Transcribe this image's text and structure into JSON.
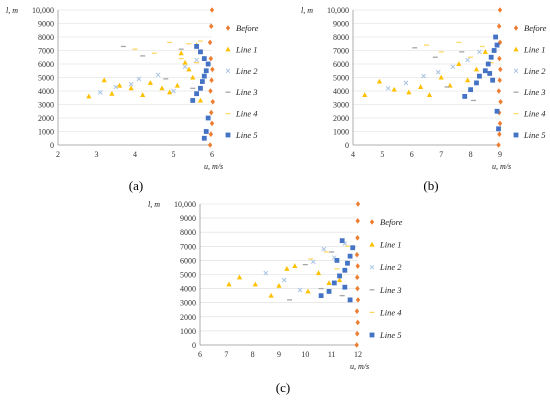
{
  "figure": {
    "panel_labels": [
      "(a)",
      "(b)",
      "(c)"
    ]
  },
  "colors": {
    "Before": "#ED7D31",
    "Line 1": "#FFC000",
    "Line 2": "#A9C4E2",
    "Line 3": "#A6A6A6",
    "Line 4": "#FFD966",
    "Line 5": "#4472C4"
  },
  "chart_data": [
    {
      "type": "scatter",
      "panel": "(a)",
      "xlabel": "u, m/s",
      "ylabel": "l, m",
      "xlim": [
        2,
        6
      ],
      "ylim": [
        0,
        10000
      ],
      "xticks": [
        "2",
        "3",
        "4",
        "5",
        "6"
      ],
      "yticks": [
        "0",
        "1000",
        "2000",
        "3000",
        "4000",
        "5000",
        "6000",
        "7000",
        "8000",
        "9000",
        "10,000"
      ],
      "legend": [
        "Before",
        "Line 1",
        "Line 2",
        "Line 3",
        "Line 4",
        "Line 5"
      ],
      "legend_position": "right",
      "grid": "major",
      "series": [
        {
          "name": "Before",
          "x": [
            5.95,
            5.97,
            6.0,
            5.98,
            6.02,
            5.96,
            5.99,
            6.01,
            5.97,
            5.95,
            5.98,
            6.0
          ],
          "y": [
            0,
            800,
            1600,
            2400,
            3200,
            4000,
            4800,
            5600,
            6400,
            7600,
            8800,
            10000
          ]
        },
        {
          "name": "Line 1",
          "x": [
            2.8,
            3.2,
            3.4,
            3.6,
            3.9,
            4.2,
            4.4,
            4.7,
            4.9,
            5.1,
            5.3,
            5.5,
            5.6,
            5.7,
            5.4,
            5.2
          ],
          "y": [
            3600,
            4800,
            3800,
            4400,
            4200,
            3700,
            4600,
            4200,
            3900,
            4400,
            6100,
            5000,
            7400,
            3300,
            5600,
            6800
          ]
        },
        {
          "name": "Line 2",
          "x": [
            3.1,
            3.5,
            3.9,
            4.1,
            4.6,
            5.0,
            5.3,
            5.6
          ],
          "y": [
            3900,
            4300,
            4500,
            4900,
            5200,
            4000,
            5800,
            6300
          ]
        },
        {
          "name": "Line 3",
          "x": [
            3.7,
            4.2,
            4.8,
            5.2,
            5.5
          ],
          "y": [
            7300,
            6600,
            4900,
            7100,
            4200
          ]
        },
        {
          "name": "Line 4",
          "x": [
            4.0,
            4.5,
            4.9,
            5.2,
            5.4,
            5.6,
            5.7
          ],
          "y": [
            7100,
            6800,
            7600,
            6400,
            7500,
            6100,
            7700
          ]
        },
        {
          "name": "Line 5",
          "x": [
            5.5,
            5.6,
            5.7,
            5.75,
            5.8,
            5.85,
            5.9,
            5.8,
            5.7,
            5.6,
            5.9,
            5.85,
            5.8
          ],
          "y": [
            3300,
            3800,
            4200,
            4700,
            5100,
            5500,
            6000,
            6400,
            6900,
            7300,
            2000,
            1000,
            500
          ]
        }
      ]
    },
    {
      "type": "scatter",
      "panel": "(b)",
      "xlabel": "u, m/s",
      "ylabel": "l, m",
      "xlim": [
        4,
        9
      ],
      "ylim": [
        0,
        10000
      ],
      "xticks": [
        "4",
        "5",
        "6",
        "7",
        "8",
        "9"
      ],
      "yticks": [
        "0",
        "1000",
        "2000",
        "3000",
        "4000",
        "5000",
        "6000",
        "7000",
        "8000",
        "9000",
        "10,000"
      ],
      "legend": [
        "Before",
        "Line 1",
        "Line 2",
        "Line 3",
        "Line 4",
        "Line 5"
      ],
      "legend_position": "right",
      "grid": "major",
      "series": [
        {
          "name": "Before",
          "x": [
            8.95,
            8.98,
            9.0,
            8.97,
            9.02,
            8.96,
            8.99,
            9.01,
            8.98,
            9.0,
            8.97,
            9.0
          ],
          "y": [
            0,
            800,
            1600,
            2400,
            3200,
            4000,
            4800,
            5600,
            6400,
            7600,
            8800,
            10000
          ]
        },
        {
          "name": "Line 1",
          "x": [
            4.4,
            4.9,
            5.4,
            5.9,
            6.3,
            6.6,
            7.0,
            7.3,
            7.6,
            7.9,
            8.2,
            8.5
          ],
          "y": [
            3700,
            4700,
            4100,
            3900,
            4300,
            3700,
            5000,
            4400,
            6000,
            4800,
            5600,
            6900
          ]
        },
        {
          "name": "Line 2",
          "x": [
            5.2,
            5.8,
            6.4,
            6.9,
            7.4,
            7.9,
            8.3
          ],
          "y": [
            4200,
            4600,
            5100,
            5400,
            5800,
            6300,
            6900
          ]
        },
        {
          "name": "Line 3",
          "x": [
            6.1,
            6.8,
            7.2,
            7.7,
            8.1
          ],
          "y": [
            7200,
            6500,
            4300,
            6900,
            3300
          ]
        },
        {
          "name": "Line 4",
          "x": [
            6.5,
            7.0,
            7.6,
            8.0,
            8.4,
            8.7
          ],
          "y": [
            7400,
            6900,
            7600,
            6500,
            7300,
            6100
          ]
        },
        {
          "name": "Line 5",
          "x": [
            7.8,
            8.0,
            8.2,
            8.3,
            8.5,
            8.6,
            8.7,
            8.8,
            8.9,
            8.75,
            8.65,
            8.85,
            8.9,
            8.95
          ],
          "y": [
            3600,
            4100,
            4600,
            5100,
            5500,
            6000,
            6500,
            7000,
            7400,
            4800,
            5300,
            8000,
            2500,
            1200
          ]
        }
      ]
    },
    {
      "type": "scatter",
      "panel": "(c)",
      "xlabel": "u, m/s",
      "ylabel": "l, m",
      "xlim": [
        6,
        12
      ],
      "ylim": [
        0,
        10000
      ],
      "xticks": [
        "6",
        "7",
        "8",
        "9",
        "10",
        "11",
        "12"
      ],
      "yticks": [
        "0",
        "1000",
        "2000",
        "3000",
        "4000",
        "5000",
        "6000",
        "7000",
        "8000",
        "9000",
        "10,000"
      ],
      "legend": [
        "Before",
        "Line 1",
        "Line 2",
        "Line 3",
        "Line 4",
        "Line 5"
      ],
      "legend_position": "right",
      "grid": "major",
      "series": [
        {
          "name": "Before",
          "x": [
            11.95,
            11.97,
            11.99,
            11.96,
            12.0,
            11.98,
            11.97,
            11.99,
            11.96,
            11.98,
            11.99,
            12.0
          ],
          "y": [
            0,
            800,
            1600,
            2400,
            3200,
            4000,
            4800,
            5600,
            6400,
            7600,
            8800,
            10000
          ]
        },
        {
          "name": "Line 1",
          "x": [
            7.1,
            7.5,
            8.1,
            8.7,
            9.0,
            9.3,
            9.6,
            10.1,
            10.5,
            10.9,
            11.3
          ],
          "y": [
            4300,
            4800,
            4300,
            3500,
            4200,
            5400,
            5600,
            3800,
            5100,
            4400,
            4600
          ]
        },
        {
          "name": "Line 2",
          "x": [
            8.5,
            9.2,
            9.8,
            10.3,
            10.7,
            11.1,
            11.5
          ],
          "y": [
            5100,
            4600,
            3900,
            5900,
            6800,
            6200,
            7200
          ]
        },
        {
          "name": "Line 3",
          "x": [
            9.4,
            10.0,
            10.6,
            11.0,
            11.4
          ],
          "y": [
            3200,
            5700,
            4000,
            6600,
            3500
          ]
        },
        {
          "name": "Line 4",
          "x": [
            10.2,
            10.8,
            11.2,
            11.6
          ],
          "y": [
            6100,
            6600,
            5400,
            7000
          ]
        },
        {
          "name": "Line 5",
          "x": [
            10.6,
            10.9,
            11.1,
            11.3,
            11.5,
            11.6,
            11.7,
            11.8,
            11.4,
            11.2,
            11.7,
            11.5
          ],
          "y": [
            3500,
            3800,
            4400,
            4900,
            5300,
            5800,
            6300,
            6900,
            7400,
            6000,
            3200,
            4100
          ]
        }
      ]
    }
  ]
}
